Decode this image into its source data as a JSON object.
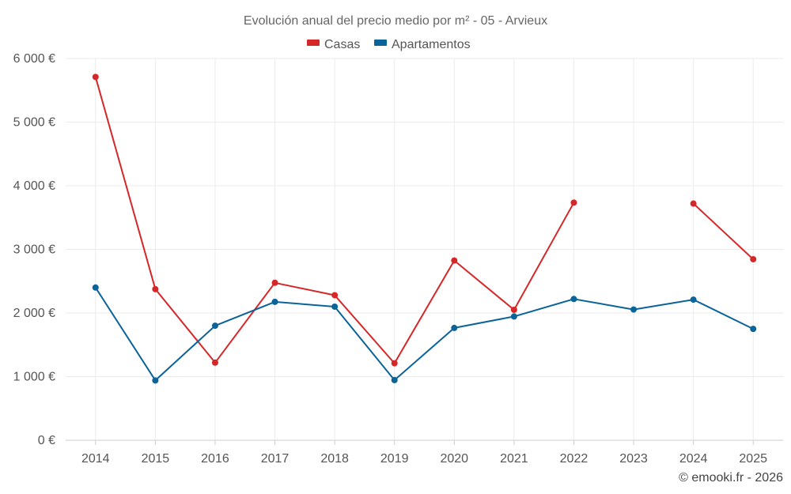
{
  "chart_data": {
    "type": "line",
    "title": "Evolución anual del precio medio por m² - 05 - Arvieux",
    "categories": [
      "2014",
      "2015",
      "2016",
      "2017",
      "2018",
      "2019",
      "2020",
      "2021",
      "2022",
      "2023",
      "2024",
      "2025"
    ],
    "ylim": [
      0,
      6000
    ],
    "yticks": [
      0,
      1000,
      2000,
      3000,
      4000,
      5000,
      6000
    ],
    "ytick_labels": [
      "0 €",
      "1 000 €",
      "2 000 €",
      "3 000 €",
      "4 000 €",
      "5 000 €",
      "6 000 €"
    ],
    "grid": true,
    "legend_position": "top-center",
    "series": [
      {
        "name": "Casas",
        "color": "#d62728",
        "values": [
          5710,
          2375,
          1220,
          2475,
          2280,
          1210,
          2825,
          2050,
          3735,
          null,
          3720,
          2845
        ]
      },
      {
        "name": "Apartamentos",
        "color": "#0a6399",
        "values": [
          2400,
          940,
          1800,
          2175,
          2100,
          945,
          1765,
          1945,
          2220,
          2055,
          2210,
          1750
        ]
      }
    ],
    "credit": "© emooki.fr - 2026"
  }
}
